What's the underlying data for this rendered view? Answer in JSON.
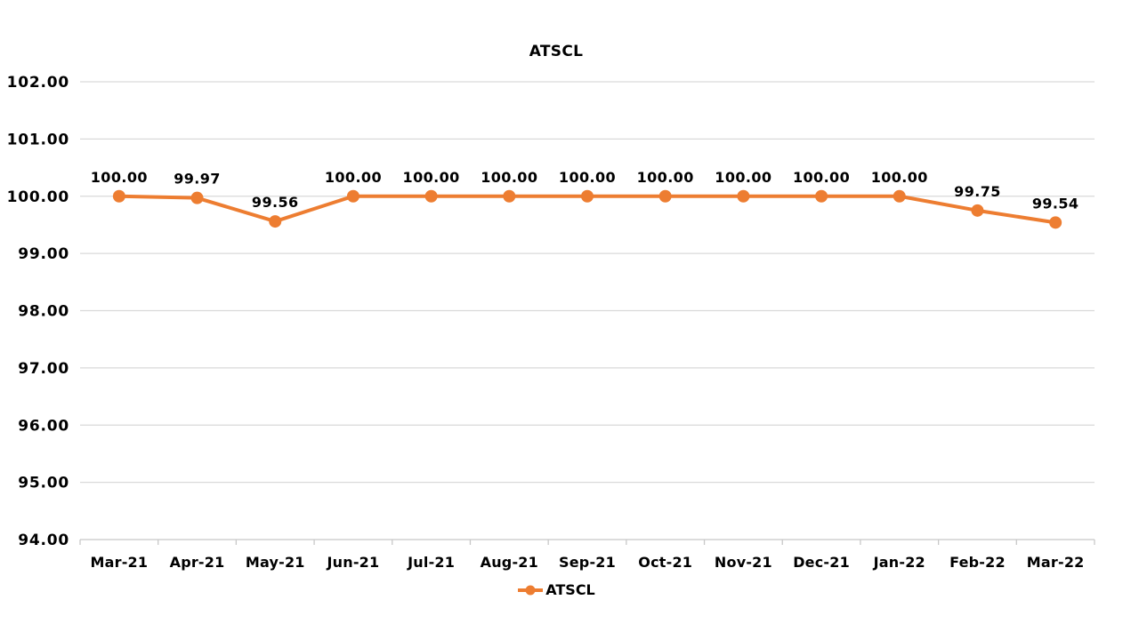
{
  "chart_data": {
    "type": "line",
    "title": "ATSCL",
    "categories": [
      "Mar-21",
      "Apr-21",
      "May-21",
      "Jun-21",
      "Jul-21",
      "Aug-21",
      "Sep-21",
      "Oct-21",
      "Nov-21",
      "Dec-21",
      "Jan-22",
      "Feb-22",
      "Mar-22"
    ],
    "series": [
      {
        "name": "ATSCL",
        "values": [
          100.0,
          99.97,
          99.56,
          100.0,
          100.0,
          100.0,
          100.0,
          100.0,
          100.0,
          100.0,
          100.0,
          99.75,
          99.54
        ],
        "labels": [
          "100.00",
          "99.97",
          "99.56",
          "100.00",
          "100.00",
          "100.00",
          "100.00",
          "100.00",
          "100.00",
          "100.00",
          "100.00",
          "99.75",
          "99.54"
        ],
        "color": "#ED7D31"
      }
    ],
    "xlabel": "",
    "ylabel": "",
    "ylim": [
      94,
      102
    ],
    "ytick_step": 1,
    "ytick_labels": [
      "94.00",
      "95.00",
      "96.00",
      "97.00",
      "98.00",
      "99.00",
      "100.00",
      "101.00",
      "102.00"
    ],
    "grid": true,
    "legend_position": "bottom",
    "legend_label": "ATSCL"
  },
  "colors": {
    "line": "#ED7D31",
    "marker": "#ED7D31",
    "grid": "#D9D9D9",
    "axis": "#C8C8C8",
    "text": "#000000",
    "background": "#FFFFFF"
  }
}
